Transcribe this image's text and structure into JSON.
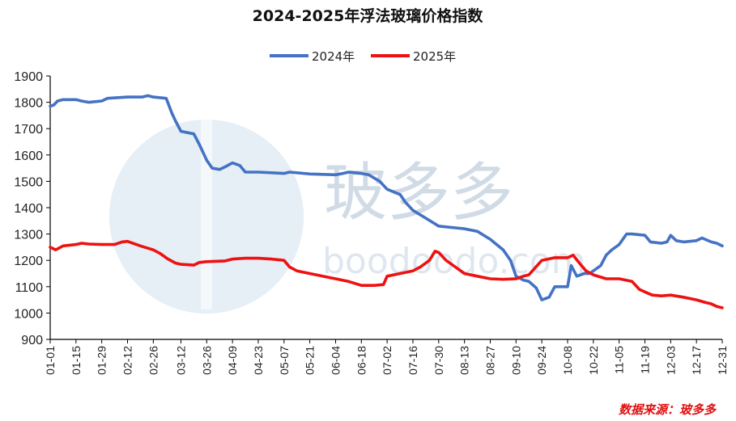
{
  "chart_data": {
    "type": "line",
    "title": "2024-2025年浮法玻璃价格指数",
    "xlabel": "",
    "ylabel": "",
    "ylim": [
      900,
      1900
    ],
    "yticks": [
      900,
      1000,
      1100,
      1200,
      1300,
      1400,
      1500,
      1600,
      1700,
      1800,
      1900
    ],
    "xticks": [
      "01-01",
      "01-15",
      "01-29",
      "02-12",
      "02-26",
      "03-12",
      "03-26",
      "04-09",
      "04-23",
      "05-07",
      "05-21",
      "06-04",
      "06-18",
      "07-02",
      "07-16",
      "07-30",
      "08-13",
      "08-27",
      "09-10",
      "09-24",
      "10-08",
      "10-22",
      "11-05",
      "11-19",
      "12-03",
      "12-17",
      "12-31"
    ],
    "grid": false,
    "legend": "top",
    "series": [
      {
        "name": "2024年",
        "color": "#4472c4",
        "points": [
          [
            "01-01",
            1785
          ],
          [
            "01-03",
            1790
          ],
          [
            "01-05",
            1805
          ],
          [
            "01-08",
            1810
          ],
          [
            "01-15",
            1810
          ],
          [
            "01-18",
            1805
          ],
          [
            "01-22",
            1800
          ],
          [
            "01-29",
            1805
          ],
          [
            "02-01",
            1815
          ],
          [
            "02-12",
            1820
          ],
          [
            "02-20",
            1820
          ],
          [
            "02-23",
            1825
          ],
          [
            "02-26",
            1820
          ],
          [
            "03-04",
            1815
          ],
          [
            "03-07",
            1760
          ],
          [
            "03-09",
            1730
          ],
          [
            "03-12",
            1690
          ],
          [
            "03-19",
            1680
          ],
          [
            "03-22",
            1640
          ],
          [
            "03-26",
            1580
          ],
          [
            "03-29",
            1550
          ],
          [
            "04-02",
            1545
          ],
          [
            "04-05",
            1555
          ],
          [
            "04-09",
            1570
          ],
          [
            "04-13",
            1560
          ],
          [
            "04-16",
            1535
          ],
          [
            "04-23",
            1535
          ],
          [
            "05-07",
            1530
          ],
          [
            "05-10",
            1535
          ],
          [
            "05-21",
            1528
          ],
          [
            "06-04",
            1525
          ],
          [
            "06-08",
            1530
          ],
          [
            "06-11",
            1535
          ],
          [
            "06-18",
            1530
          ],
          [
            "06-22",
            1525
          ],
          [
            "06-28",
            1500
          ],
          [
            "07-02",
            1470
          ],
          [
            "07-09",
            1450
          ],
          [
            "07-12",
            1420
          ],
          [
            "07-16",
            1390
          ],
          [
            "07-23",
            1360
          ],
          [
            "07-30",
            1330
          ],
          [
            "08-06",
            1325
          ],
          [
            "08-13",
            1320
          ],
          [
            "08-20",
            1310
          ],
          [
            "08-27",
            1280
          ],
          [
            "09-03",
            1240
          ],
          [
            "09-07",
            1200
          ],
          [
            "09-10",
            1140
          ],
          [
            "09-14",
            1125
          ],
          [
            "09-17",
            1120
          ],
          [
            "09-21",
            1095
          ],
          [
            "09-24",
            1050
          ],
          [
            "09-28",
            1060
          ],
          [
            "10-01",
            1100
          ],
          [
            "10-08",
            1100
          ],
          [
            "10-10",
            1180
          ],
          [
            "10-13",
            1140
          ],
          [
            "10-17",
            1150
          ],
          [
            "10-20",
            1150
          ],
          [
            "10-22",
            1160
          ],
          [
            "10-26",
            1180
          ],
          [
            "10-29",
            1220
          ],
          [
            "11-01",
            1240
          ],
          [
            "11-05",
            1260
          ],
          [
            "11-09",
            1300
          ],
          [
            "11-12",
            1300
          ],
          [
            "11-19",
            1295
          ],
          [
            "11-22",
            1270
          ],
          [
            "11-28",
            1265
          ],
          [
            "12-01",
            1270
          ],
          [
            "12-03",
            1295
          ],
          [
            "12-06",
            1275
          ],
          [
            "12-10",
            1270
          ],
          [
            "12-17",
            1275
          ],
          [
            "12-20",
            1285
          ],
          [
            "12-25",
            1270
          ],
          [
            "12-28",
            1265
          ],
          [
            "12-31",
            1255
          ]
        ]
      },
      {
        "name": "2025年",
        "color": "#ee1111",
        "points": [
          [
            "01-01",
            1250
          ],
          [
            "01-04",
            1240
          ],
          [
            "01-08",
            1255
          ],
          [
            "01-15",
            1260
          ],
          [
            "01-18",
            1265
          ],
          [
            "01-22",
            1262
          ],
          [
            "01-29",
            1260
          ],
          [
            "02-05",
            1260
          ],
          [
            "02-09",
            1270
          ],
          [
            "02-12",
            1272
          ],
          [
            "02-19",
            1255
          ],
          [
            "02-26",
            1240
          ],
          [
            "03-01",
            1225
          ],
          [
            "03-05",
            1205
          ],
          [
            "03-09",
            1190
          ],
          [
            "03-12",
            1185
          ],
          [
            "03-19",
            1182
          ],
          [
            "03-22",
            1192
          ],
          [
            "03-26",
            1195
          ],
          [
            "04-05",
            1198
          ],
          [
            "04-09",
            1205
          ],
          [
            "04-16",
            1208
          ],
          [
            "04-23",
            1208
          ],
          [
            "04-30",
            1205
          ],
          [
            "05-07",
            1200
          ],
          [
            "05-10",
            1175
          ],
          [
            "05-14",
            1160
          ],
          [
            "05-21",
            1150
          ],
          [
            "05-28",
            1140
          ],
          [
            "06-04",
            1130
          ],
          [
            "06-11",
            1120
          ],
          [
            "06-18",
            1105
          ],
          [
            "06-25",
            1105
          ],
          [
            "06-30",
            1108
          ],
          [
            "07-02",
            1140
          ],
          [
            "07-09",
            1150
          ],
          [
            "07-16",
            1160
          ],
          [
            "07-20",
            1175
          ],
          [
            "07-25",
            1200
          ],
          [
            "07-28",
            1235
          ],
          [
            "07-30",
            1230
          ],
          [
            "08-03",
            1200
          ],
          [
            "08-06",
            1185
          ],
          [
            "08-13",
            1150
          ],
          [
            "08-20",
            1140
          ],
          [
            "08-27",
            1130
          ],
          [
            "09-03",
            1128
          ],
          [
            "09-10",
            1130
          ],
          [
            "09-14",
            1140
          ],
          [
            "09-17",
            1145
          ],
          [
            "09-24",
            1200
          ],
          [
            "10-01",
            1210
          ],
          [
            "10-08",
            1210
          ],
          [
            "10-11",
            1220
          ],
          [
            "10-15",
            1185
          ],
          [
            "10-18",
            1160
          ],
          [
            "10-22",
            1145
          ],
          [
            "10-29",
            1130
          ],
          [
            "11-05",
            1130
          ],
          [
            "11-12",
            1120
          ],
          [
            "11-16",
            1090
          ],
          [
            "11-19",
            1080
          ],
          [
            "11-23",
            1068
          ],
          [
            "11-28",
            1065
          ],
          [
            "12-03",
            1068
          ],
          [
            "12-10",
            1060
          ],
          [
            "12-17",
            1050
          ],
          [
            "12-22",
            1040
          ],
          [
            "12-25",
            1035
          ],
          [
            "12-28",
            1025
          ],
          [
            "12-31",
            1020
          ]
        ]
      }
    ],
    "source": "数据来源：玻多多"
  },
  "watermark": {
    "text": "玻多多",
    "url": "boodoodo.com"
  }
}
